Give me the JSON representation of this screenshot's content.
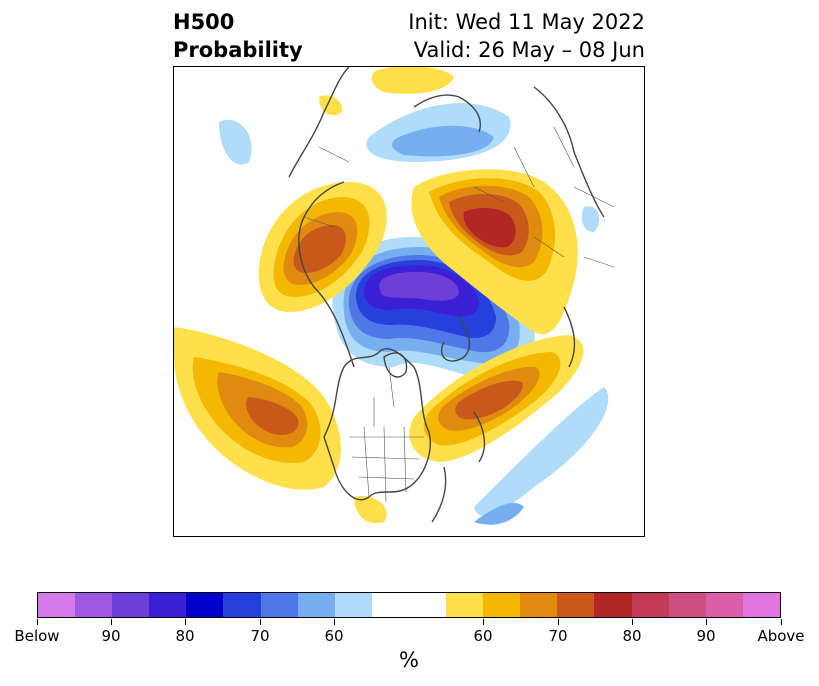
{
  "title": {
    "left_line1": "H500",
    "left_line2": "Probability",
    "right_line1": "Init: Wed 11 May 2022",
    "right_line2": "Valid: 26 May – 08 Jun"
  },
  "colorbar": {
    "unit_label": "%",
    "colors": [
      "#d77ae9",
      "#9e58e0",
      "#6c3fd9",
      "#3a1fd4",
      "#0000cd",
      "#2640dd",
      "#4f77e8",
      "#76aef0",
      "#aedcfa",
      "#ffffff",
      "#ffffff",
      "#ffe04a",
      "#f5b800",
      "#e08a10",
      "#c8591a",
      "#b32626",
      "#c23a55",
      "#cc4f7f",
      "#da5ea8",
      "#e276e0"
    ],
    "tick_labels": [
      "Below",
      "90",
      "80",
      "70",
      "60",
      "60",
      "70",
      "80",
      "90",
      "Above"
    ]
  },
  "map": {
    "description_colors": {
      "deep_blue": "#5a2fd9",
      "dark_red": "#b32626"
    }
  }
}
